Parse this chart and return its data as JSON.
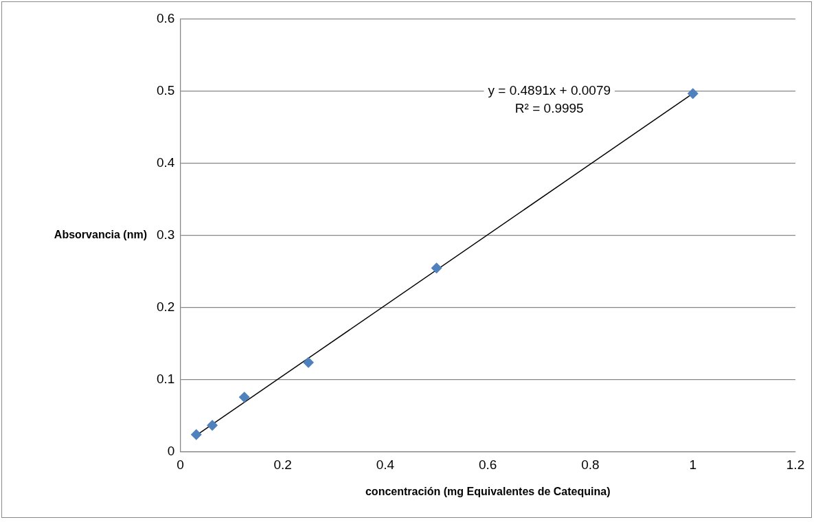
{
  "chart_data": {
    "type": "scatter",
    "xlabel": "concentración (mg Equivalentes de Catequina)",
    "ylabel": "Absorvancia (nm)",
    "series": [
      {
        "type": "scatter",
        "color": "#4f81bd",
        "x": [
          0.03125,
          0.0625,
          0.125,
          0.25,
          0.5,
          1
        ],
        "values": [
          0.024,
          0.037,
          0.076,
          0.124,
          0.255,
          0.497
        ]
      },
      {
        "type": "line",
        "color": "#000000",
        "marker": "none",
        "x": [
          0.03125,
          1
        ],
        "values": [
          0.023,
          0.497
        ]
      }
    ],
    "xlim": [
      0,
      1.2
    ],
    "xticks": [
      0,
      0.2,
      0.4,
      0.6,
      0.8,
      1,
      1.2
    ],
    "ylim": [
      0,
      0.6
    ],
    "yticks": [
      0,
      0.1,
      0.2,
      0.3,
      0.4,
      0.5,
      0.6
    ],
    "grid": "y",
    "legend": false,
    "marker": "diamond",
    "annotations": [
      "y = 0.4891x + 0.0079",
      "R² = 0.9995"
    ]
  }
}
